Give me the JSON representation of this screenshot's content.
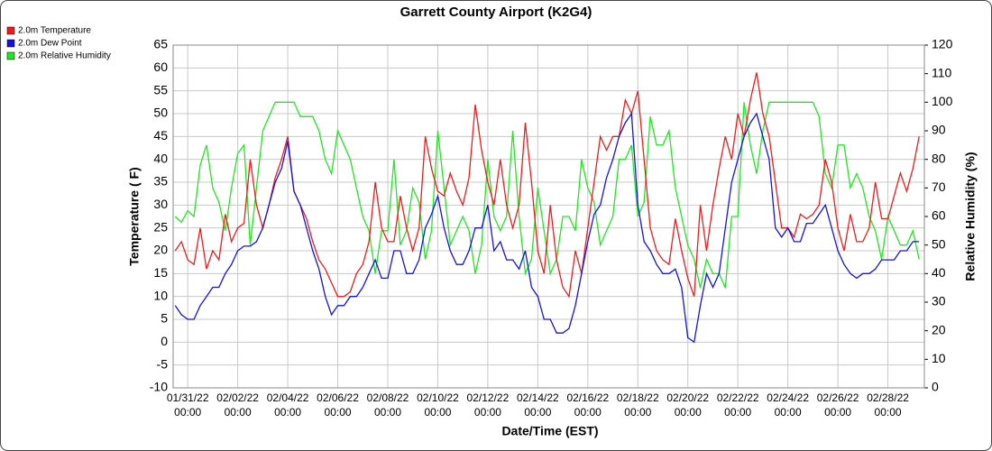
{
  "chart_data": {
    "type": "line",
    "title": "Garrett County Airport (K2G4)",
    "xlabel": "Date/Time (EST)",
    "ylabel": "Temperature ( F)",
    "y2label": "Relative Humidity (%)",
    "x": [
      "01/30/22 12:00",
      "01/30/22 18:00",
      "01/31/22 00:00",
      "01/31/22 06:00",
      "01/31/22 12:00",
      "01/31/22 18:00",
      "02/01/22 00:00",
      "02/01/22 06:00",
      "02/01/22 12:00",
      "02/01/22 18:00",
      "02/02/22 00:00",
      "02/02/22 06:00",
      "02/02/22 12:00",
      "02/02/22 18:00",
      "02/03/22 00:00",
      "02/03/22 06:00",
      "02/03/22 12:00",
      "02/03/22 18:00",
      "02/04/22 00:00",
      "02/04/22 06:00",
      "02/04/22 12:00",
      "02/04/22 18:00",
      "02/05/22 00:00",
      "02/05/22 06:00",
      "02/05/22 12:00",
      "02/05/22 18:00",
      "02/06/22 00:00",
      "02/06/22 06:00",
      "02/06/22 12:00",
      "02/06/22 18:00",
      "02/07/22 00:00",
      "02/07/22 06:00",
      "02/07/22 12:00",
      "02/07/22 18:00",
      "02/08/22 00:00",
      "02/08/22 06:00",
      "02/08/22 12:00",
      "02/08/22 18:00",
      "02/09/22 00:00",
      "02/09/22 06:00",
      "02/09/22 12:00",
      "02/09/22 18:00",
      "02/10/22 00:00",
      "02/10/22 06:00",
      "02/10/22 12:00",
      "02/10/22 18:00",
      "02/11/22 00:00",
      "02/11/22 06:00",
      "02/11/22 12:00",
      "02/11/22 18:00",
      "02/12/22 00:00",
      "02/12/22 06:00",
      "02/12/22 12:00",
      "02/12/22 18:00",
      "02/13/22 00:00",
      "02/13/22 06:00",
      "02/13/22 12:00",
      "02/13/22 18:00",
      "02/14/22 00:00",
      "02/14/22 06:00",
      "02/14/22 12:00",
      "02/14/22 18:00",
      "02/15/22 00:00",
      "02/15/22 06:00",
      "02/15/22 12:00",
      "02/15/22 18:00",
      "02/16/22 00:00",
      "02/16/22 06:00",
      "02/16/22 12:00",
      "02/16/22 18:00",
      "02/17/22 00:00",
      "02/17/22 06:00",
      "02/17/22 12:00",
      "02/17/22 18:00",
      "02/18/22 00:00",
      "02/18/22 06:00",
      "02/18/22 12:00",
      "02/18/22 18:00",
      "02/19/22 00:00",
      "02/19/22 06:00",
      "02/19/22 12:00",
      "02/19/22 18:00",
      "02/20/22 00:00",
      "02/20/22 06:00",
      "02/20/22 12:00",
      "02/20/22 18:00",
      "02/21/22 00:00",
      "02/21/22 06:00",
      "02/21/22 12:00",
      "02/21/22 18:00",
      "02/22/22 00:00",
      "02/22/22 06:00",
      "02/22/22 12:00",
      "02/22/22 18:00",
      "02/23/22 00:00",
      "02/23/22 06:00",
      "02/23/22 12:00",
      "02/23/22 18:00",
      "02/24/22 00:00",
      "02/24/22 06:00",
      "02/24/22 12:00",
      "02/24/22 18:00",
      "02/25/22 00:00",
      "02/25/22 06:00",
      "02/25/22 12:00",
      "02/25/22 18:00",
      "02/26/22 00:00",
      "02/26/22 06:00",
      "02/26/22 12:00",
      "02/26/22 18:00",
      "02/27/22 00:00",
      "02/27/22 06:00",
      "02/27/22 12:00",
      "02/27/22 18:00",
      "02/28/22 00:00",
      "02/28/22 06:00",
      "02/28/22 12:00",
      "02/28/22 18:00",
      "03/01/22 00:00",
      "03/01/22 06:00"
    ],
    "series": [
      {
        "name": "2.0m Temperature",
        "color": "#ee1c1c",
        "axis": "y",
        "values": [
          20,
          22,
          18,
          17,
          25,
          16,
          20,
          18,
          28,
          22,
          25,
          26,
          40,
          30,
          25,
          30,
          36,
          40,
          45,
          33,
          30,
          27,
          22,
          18,
          16,
          13,
          10,
          10,
          11,
          15,
          17,
          22,
          35,
          25,
          22,
          22,
          32,
          25,
          20,
          25,
          45,
          38,
          33,
          32,
          37,
          33,
          30,
          36,
          52,
          42,
          35,
          30,
          40,
          30,
          25,
          30,
          48,
          35,
          20,
          15,
          30,
          18,
          12,
          10,
          20,
          15,
          25,
          35,
          45,
          42,
          45,
          45,
          53,
          50,
          55,
          40,
          25,
          20,
          18,
          17,
          27,
          20,
          14,
          10,
          30,
          20,
          30,
          38,
          45,
          40,
          50,
          45,
          53,
          59,
          50,
          45,
          35,
          25,
          25,
          23,
          28,
          27,
          28,
          30,
          40,
          35,
          25,
          20,
          28,
          22,
          22,
          25,
          35,
          27,
          27,
          32,
          37,
          33,
          38,
          45
        ]
      },
      {
        "name": "2.0m Dew Point",
        "color": "#1414dc",
        "axis": "y",
        "values": [
          8,
          6,
          5,
          5,
          8,
          10,
          12,
          12,
          15,
          17,
          20,
          21,
          21,
          22,
          25,
          30,
          35,
          38,
          44,
          33,
          30,
          25,
          20,
          16,
          10,
          6,
          8,
          8,
          10,
          10,
          12,
          15,
          18,
          14,
          14,
          20,
          20,
          15,
          15,
          18,
          25,
          28,
          32,
          25,
          20,
          17,
          17,
          20,
          25,
          25,
          30,
          20,
          22,
          18,
          18,
          16,
          20,
          12,
          10,
          5,
          5,
          2,
          2,
          3,
          8,
          15,
          22,
          28,
          30,
          36,
          40,
          45,
          48,
          50,
          30,
          22,
          20,
          17,
          15,
          15,
          16,
          12,
          1,
          0,
          8,
          15,
          12,
          15,
          25,
          35,
          40,
          45,
          48,
          50,
          45,
          40,
          25,
          23,
          25,
          22,
          22,
          26,
          26,
          28,
          30,
          25,
          20,
          17,
          15,
          14,
          15,
          15,
          16,
          18,
          18,
          18,
          20,
          20,
          22,
          22
        ]
      },
      {
        "name": "2.0m Relative Humidity",
        "color": "#22e622",
        "axis": "y2",
        "values": [
          60,
          58,
          62,
          60,
          78,
          85,
          70,
          65,
          55,
          70,
          82,
          85,
          50,
          70,
          90,
          95,
          100,
          100,
          100,
          100,
          95,
          95,
          95,
          90,
          80,
          75,
          90,
          85,
          80,
          70,
          60,
          55,
          40,
          55,
          55,
          80,
          50,
          55,
          70,
          65,
          45,
          55,
          90,
          70,
          50,
          55,
          60,
          55,
          40,
          50,
          80,
          60,
          55,
          60,
          90,
          60,
          40,
          45,
          70,
          55,
          40,
          45,
          60,
          60,
          55,
          80,
          70,
          65,
          50,
          55,
          60,
          80,
          80,
          85,
          60,
          65,
          95,
          85,
          85,
          90,
          70,
          60,
          50,
          45,
          35,
          45,
          40,
          40,
          35,
          60,
          60,
          100,
          85,
          75,
          90,
          100,
          100,
          100,
          100,
          100,
          100,
          100,
          100,
          95,
          75,
          70,
          85,
          85,
          70,
          75,
          70,
          60,
          55,
          45,
          60,
          55,
          50,
          50,
          55,
          45
        ]
      }
    ],
    "xlim": [
      "01/30/22 10:00",
      "03/01/22 11:00"
    ],
    "xticks": [
      "01/31/22 00:00",
      "02/02/22 00:00",
      "02/04/22 00:00",
      "02/06/22 00:00",
      "02/08/22 00:00",
      "02/10/22 00:00",
      "02/12/22 00:00",
      "02/14/22 00:00",
      "02/16/22 00:00",
      "02/18/22 00:00",
      "02/20/22 00:00",
      "02/22/22 00:00",
      "02/24/22 00:00",
      "02/26/22 00:00",
      "02/28/22 00:00"
    ],
    "ylim": [
      -10,
      65
    ],
    "yticks": [
      -10,
      -5,
      0,
      5,
      10,
      15,
      20,
      25,
      30,
      35,
      40,
      45,
      50,
      55,
      60,
      65
    ],
    "y2lim": [
      0,
      120
    ],
    "y2ticks": [
      0,
      10,
      20,
      30,
      40,
      50,
      60,
      70,
      80,
      90,
      100,
      110,
      120
    ],
    "grid": true,
    "legend": "top-left"
  }
}
